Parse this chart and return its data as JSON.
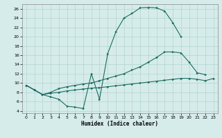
{
  "xlabel": "Humidex (Indice chaleur)",
  "xlim": [
    -0.5,
    23.5
  ],
  "ylim": [
    3.5,
    27.0
  ],
  "yticks": [
    4,
    6,
    8,
    10,
    12,
    14,
    16,
    18,
    20,
    22,
    24,
    26
  ],
  "xticks": [
    0,
    1,
    2,
    3,
    4,
    5,
    6,
    7,
    8,
    9,
    10,
    11,
    12,
    13,
    14,
    15,
    16,
    17,
    18,
    19,
    20,
    21,
    22,
    23
  ],
  "bg_color": "#d6ecea",
  "grid_color": "#b2d4d0",
  "line_color": "#1a6b60",
  "curve_top_x": [
    0,
    1,
    2,
    3,
    4,
    5,
    6,
    7,
    8,
    9,
    10,
    11,
    12,
    13,
    14,
    15,
    16,
    17,
    18,
    19
  ],
  "curve_top_y": [
    9.5,
    8.5,
    7.5,
    7.0,
    6.5,
    5.0,
    4.8,
    4.5,
    12.0,
    6.5,
    16.3,
    21.0,
    24.0,
    25.0,
    26.2,
    26.3,
    26.2,
    25.5,
    23.0,
    20.0
  ],
  "curve_mid_x": [
    0,
    1,
    2,
    3,
    4,
    5,
    6,
    7,
    8,
    9,
    10,
    11,
    12,
    13,
    14,
    15,
    16,
    17,
    18,
    19,
    20,
    21,
    22
  ],
  "curve_mid_y": [
    9.5,
    8.5,
    7.5,
    8.0,
    8.8,
    9.2,
    9.5,
    9.8,
    10.0,
    10.5,
    11.0,
    11.5,
    12.0,
    12.8,
    13.5,
    14.5,
    15.5,
    16.7,
    16.7,
    16.5,
    14.5,
    12.2,
    11.8
  ],
  "curve_bot_x": [
    0,
    1,
    2,
    3,
    4,
    5,
    6,
    7,
    8,
    9,
    10,
    11,
    12,
    13,
    14,
    15,
    16,
    17,
    18,
    19,
    20,
    21,
    22,
    23
  ],
  "curve_bot_y": [
    9.5,
    8.5,
    7.5,
    7.8,
    8.0,
    8.3,
    8.5,
    8.7,
    8.9,
    9.0,
    9.2,
    9.4,
    9.6,
    9.8,
    10.0,
    10.2,
    10.4,
    10.6,
    10.8,
    11.0,
    11.0,
    10.8,
    10.5,
    11.0
  ]
}
